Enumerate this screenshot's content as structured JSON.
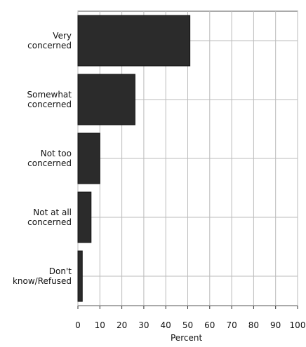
{
  "chart_data": {
    "type": "bar",
    "orientation": "horizontal",
    "categories": [
      "Very\nconcerned",
      "Somewhat\nconcerned",
      "Not too\nconcerned",
      "Not at all\nconcerned",
      "Don't\nknow/Refused"
    ],
    "values": [
      51,
      26,
      10,
      6,
      2
    ],
    "xlabel": "Percent",
    "xlim": [
      0,
      100
    ],
    "xticks": [
      "0",
      "10",
      "20",
      "30",
      "40",
      "50",
      "60",
      "70",
      "80",
      "90",
      "100"
    ],
    "grid": true,
    "bar_color": "#2b2b2b"
  }
}
